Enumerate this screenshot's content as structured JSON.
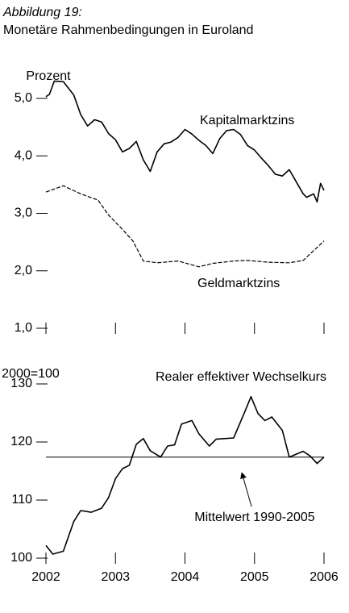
{
  "title": "Abbildung 19:",
  "subtitle": "Monetäre Rahmenbedingungen in Euroland",
  "chart_data": [
    {
      "type": "line",
      "y_label": "Prozent",
      "xlim": [
        2002,
        2006
      ],
      "xticks": [
        2002,
        2003,
        2004,
        2005,
        2006
      ],
      "ylim": [
        1,
        5
      ],
      "yticks": [
        {
          "value": 1,
          "label": "1,0"
        },
        {
          "value": 2,
          "label": "2,0"
        },
        {
          "value": 3,
          "label": "3,0"
        },
        {
          "value": 4,
          "label": "4,0"
        },
        {
          "value": 5,
          "label": "5,0"
        }
      ],
      "series": [
        {
          "name": "Kapitalmarktzins",
          "color": "#000000",
          "dash": false,
          "x": [
            2002.0,
            2002.05,
            2002.12,
            2002.25,
            2002.4,
            2002.5,
            2002.6,
            2002.7,
            2002.8,
            2002.9,
            2003.0,
            2003.1,
            2003.2,
            2003.3,
            2003.4,
            2003.5,
            2003.6,
            2003.7,
            2003.8,
            2003.9,
            2004.0,
            2004.1,
            2004.2,
            2004.3,
            2004.4,
            2004.5,
            2004.6,
            2004.7,
            2004.8,
            2004.9,
            2005.0,
            2005.1,
            2005.2,
            2005.3,
            2005.4,
            2005.5,
            2005.6,
            2005.7,
            2005.75,
            2005.85,
            2005.9,
            2005.95,
            2006.0
          ],
          "values": [
            5.03,
            5.07,
            5.3,
            5.29,
            5.06,
            4.72,
            4.52,
            4.63,
            4.59,
            4.39,
            4.28,
            4.07,
            4.13,
            4.25,
            3.93,
            3.73,
            4.07,
            4.21,
            4.24,
            4.32,
            4.46,
            4.38,
            4.27,
            4.18,
            4.04,
            4.3,
            4.44,
            4.46,
            4.37,
            4.18,
            4.1,
            3.96,
            3.83,
            3.68,
            3.65,
            3.76,
            3.55,
            3.34,
            3.28,
            3.34,
            3.2,
            3.52,
            3.4
          ]
        },
        {
          "name": "Geldmarktzins",
          "color": "#000000",
          "dash": true,
          "x": [
            2002.0,
            2002.25,
            2002.5,
            2002.75,
            2002.9,
            2003.1,
            2003.25,
            2003.4,
            2003.6,
            2003.9,
            2004.2,
            2004.4,
            2004.7,
            2004.9,
            2005.2,
            2005.5,
            2005.7,
            2005.85,
            2006.0
          ],
          "values": [
            3.37,
            3.48,
            3.34,
            3.23,
            2.97,
            2.72,
            2.52,
            2.17,
            2.14,
            2.17,
            2.07,
            2.13,
            2.17,
            2.18,
            2.15,
            2.14,
            2.18,
            2.35,
            2.52
          ]
        }
      ]
    },
    {
      "type": "line",
      "y_label": "2000=100",
      "xlim": [
        2002,
        2006
      ],
      "xticks": [
        2002,
        2003,
        2004,
        2005,
        2006
      ],
      "ylim": [
        100,
        130
      ],
      "yticks": [
        100,
        110,
        120,
        130
      ],
      "reference": {
        "label": "Mittelwert 1990-2005",
        "value": 117.4
      },
      "series": [
        {
          "name": "Realer effektiver Wechselkurs",
          "color": "#000000",
          "dash": false,
          "x": [
            2002.0,
            2002.1,
            2002.25,
            2002.4,
            2002.5,
            2002.65,
            2002.8,
            2002.9,
            2003.0,
            2003.1,
            2003.2,
            2003.3,
            2003.4,
            2003.5,
            2003.65,
            2003.75,
            2003.85,
            2003.95,
            2004.1,
            2004.2,
            2004.35,
            2004.45,
            2004.7,
            2004.85,
            2004.95,
            2005.05,
            2005.15,
            2005.25,
            2005.4,
            2005.5,
            2005.7,
            2005.8,
            2005.9,
            2006.0
          ],
          "values": [
            102.2,
            100.7,
            101.2,
            106.3,
            108.2,
            107.9,
            108.6,
            110.4,
            113.7,
            115.4,
            116.0,
            119.6,
            120.6,
            118.5,
            117.4,
            119.3,
            119.5,
            123.1,
            123.7,
            121.4,
            119.3,
            120.5,
            120.7,
            124.9,
            127.8,
            124.9,
            123.7,
            124.3,
            122.0,
            117.4,
            118.4,
            117.6,
            116.3,
            117.4
          ]
        }
      ]
    }
  ]
}
